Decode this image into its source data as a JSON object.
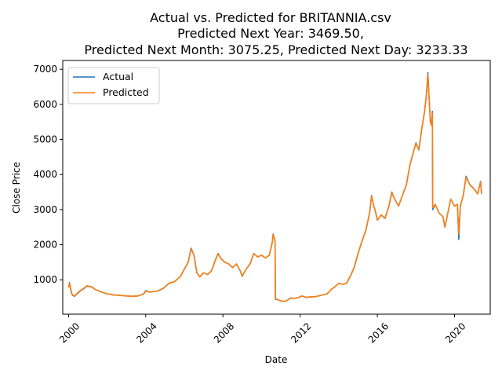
{
  "chart_data": {
    "type": "line",
    "title": [
      "Actual vs. Predicted for BRITANNIA.csv",
      "Predicted Next Year: 3469.50,",
      "Predicted Next Month: 3075.25, Predicted Next Day: 3233.33"
    ],
    "xlabel": "Date",
    "ylabel": "Close Price",
    "xlim": [
      1999.7,
      2021.85
    ],
    "ylim": [
      20,
      7250
    ],
    "xticks": [
      {
        "value": 2000,
        "label": "2000"
      },
      {
        "value": 2004,
        "label": "2004"
      },
      {
        "value": 2008,
        "label": "2008"
      },
      {
        "value": 2012,
        "label": "2012"
      },
      {
        "value": 2016,
        "label": "2016"
      },
      {
        "value": 2020,
        "label": "2020"
      }
    ],
    "yticks": [
      {
        "value": 1000,
        "label": "1000"
      },
      {
        "value": 2000,
        "label": "2000"
      },
      {
        "value": 3000,
        "label": "3000"
      },
      {
        "value": 4000,
        "label": "4000"
      },
      {
        "value": 5000,
        "label": "5000"
      },
      {
        "value": 6000,
        "label": "6000"
      },
      {
        "value": 7000,
        "label": "7000"
      }
    ],
    "legend": "top-left",
    "grid": false,
    "series": [
      {
        "name": "Actual",
        "color": "#1f77b4",
        "points": [
          [
            2000.0,
            780
          ],
          [
            2000.05,
            920
          ],
          [
            2000.12,
            700
          ],
          [
            2000.2,
            560
          ],
          [
            2000.3,
            530
          ],
          [
            2000.45,
            600
          ],
          [
            2000.6,
            680
          ],
          [
            2000.8,
            750
          ],
          [
            2000.95,
            820
          ],
          [
            2001.2,
            800
          ],
          [
            2001.4,
            720
          ],
          [
            2001.7,
            650
          ],
          [
            2002.0,
            600
          ],
          [
            2002.3,
            570
          ],
          [
            2002.6,
            560
          ],
          [
            2003.0,
            540
          ],
          [
            2003.3,
            530
          ],
          [
            2003.6,
            540
          ],
          [
            2003.9,
            600
          ],
          [
            2004.0,
            690
          ],
          [
            2004.2,
            650
          ],
          [
            2004.6,
            680
          ],
          [
            2004.9,
            750
          ],
          [
            2005.2,
            900
          ],
          [
            2005.5,
            950
          ],
          [
            2005.8,
            1100
          ],
          [
            2006.0,
            1300
          ],
          [
            2006.2,
            1500
          ],
          [
            2006.35,
            1900
          ],
          [
            2006.5,
            1700
          ],
          [
            2006.65,
            1200
          ],
          [
            2006.8,
            1080
          ],
          [
            2007.0,
            1200
          ],
          [
            2007.2,
            1150
          ],
          [
            2007.4,
            1250
          ],
          [
            2007.6,
            1550
          ],
          [
            2007.75,
            1750
          ],
          [
            2007.9,
            1600
          ],
          [
            2008.1,
            1500
          ],
          [
            2008.3,
            1450
          ],
          [
            2008.5,
            1350
          ],
          [
            2008.7,
            1450
          ],
          [
            2008.9,
            1250
          ],
          [
            2009.0,
            1100
          ],
          [
            2009.2,
            1300
          ],
          [
            2009.4,
            1450
          ],
          [
            2009.6,
            1750
          ],
          [
            2009.8,
            1650
          ],
          [
            2010.0,
            1700
          ],
          [
            2010.2,
            1620
          ],
          [
            2010.4,
            1700
          ],
          [
            2010.55,
            2050
          ],
          [
            2010.6,
            2300
          ],
          [
            2010.7,
            2100
          ],
          [
            2010.72,
            450
          ],
          [
            2010.9,
            420
          ],
          [
            2011.1,
            380
          ],
          [
            2011.3,
            400
          ],
          [
            2011.5,
            480
          ],
          [
            2011.7,
            470
          ],
          [
            2011.9,
            490
          ],
          [
            2012.1,
            540
          ],
          [
            2012.3,
            500
          ],
          [
            2012.5,
            510
          ],
          [
            2012.8,
            520
          ],
          [
            2013.1,
            560
          ],
          [
            2013.4,
            600
          ],
          [
            2013.6,
            720
          ],
          [
            2013.8,
            800
          ],
          [
            2014.0,
            900
          ],
          [
            2014.2,
            870
          ],
          [
            2014.4,
            900
          ],
          [
            2014.6,
            1100
          ],
          [
            2014.8,
            1350
          ],
          [
            2015.0,
            1750
          ],
          [
            2015.2,
            2100
          ],
          [
            2015.4,
            2400
          ],
          [
            2015.6,
            2900
          ],
          [
            2015.7,
            3400
          ],
          [
            2015.8,
            3150
          ],
          [
            2015.9,
            2950
          ],
          [
            2016.0,
            2700
          ],
          [
            2016.2,
            2850
          ],
          [
            2016.4,
            2750
          ],
          [
            2016.6,
            3100
          ],
          [
            2016.75,
            3500
          ],
          [
            2016.9,
            3300
          ],
          [
            2017.1,
            3100
          ],
          [
            2017.3,
            3400
          ],
          [
            2017.5,
            3700
          ],
          [
            2017.7,
            4300
          ],
          [
            2017.9,
            4700
          ],
          [
            2018.0,
            4900
          ],
          [
            2018.15,
            4700
          ],
          [
            2018.3,
            5300
          ],
          [
            2018.45,
            5800
          ],
          [
            2018.55,
            6300
          ],
          [
            2018.62,
            6900
          ],
          [
            2018.68,
            6200
          ],
          [
            2018.75,
            5500
          ],
          [
            2018.8,
            5400
          ],
          [
            2018.85,
            5800
          ],
          [
            2018.87,
            3000
          ],
          [
            2019.0,
            3150
          ],
          [
            2019.2,
            2900
          ],
          [
            2019.4,
            2800
          ],
          [
            2019.5,
            2500
          ],
          [
            2019.65,
            2900
          ],
          [
            2019.8,
            3300
          ],
          [
            2020.0,
            3100
          ],
          [
            2020.15,
            3150
          ],
          [
            2020.22,
            2150
          ],
          [
            2020.3,
            3100
          ],
          [
            2020.45,
            3400
          ],
          [
            2020.6,
            3950
          ],
          [
            2020.8,
            3700
          ],
          [
            2021.0,
            3600
          ],
          [
            2021.2,
            3450
          ],
          [
            2021.35,
            3800
          ],
          [
            2021.4,
            3450
          ]
        ]
      },
      {
        "name": "Predicted",
        "color": "#ff7f0e",
        "points": [
          [
            2000.0,
            780
          ],
          [
            2000.05,
            900
          ],
          [
            2000.12,
            710
          ],
          [
            2000.2,
            570
          ],
          [
            2000.3,
            540
          ],
          [
            2000.45,
            610
          ],
          [
            2000.6,
            690
          ],
          [
            2000.8,
            760
          ],
          [
            2000.95,
            830
          ],
          [
            2001.2,
            800
          ],
          [
            2001.4,
            720
          ],
          [
            2001.7,
            650
          ],
          [
            2002.0,
            600
          ],
          [
            2002.3,
            570
          ],
          [
            2002.6,
            560
          ],
          [
            2003.0,
            540
          ],
          [
            2003.3,
            530
          ],
          [
            2003.6,
            540
          ],
          [
            2003.9,
            600
          ],
          [
            2004.0,
            680
          ],
          [
            2004.2,
            650
          ],
          [
            2004.6,
            680
          ],
          [
            2004.9,
            750
          ],
          [
            2005.2,
            900
          ],
          [
            2005.5,
            950
          ],
          [
            2005.8,
            1100
          ],
          [
            2006.0,
            1300
          ],
          [
            2006.2,
            1500
          ],
          [
            2006.35,
            1880
          ],
          [
            2006.5,
            1700
          ],
          [
            2006.65,
            1200
          ],
          [
            2006.8,
            1080
          ],
          [
            2007.0,
            1200
          ],
          [
            2007.2,
            1150
          ],
          [
            2007.4,
            1250
          ],
          [
            2007.6,
            1550
          ],
          [
            2007.75,
            1740
          ],
          [
            2007.9,
            1600
          ],
          [
            2008.1,
            1500
          ],
          [
            2008.3,
            1450
          ],
          [
            2008.5,
            1350
          ],
          [
            2008.7,
            1450
          ],
          [
            2008.9,
            1250
          ],
          [
            2009.0,
            1110
          ],
          [
            2009.2,
            1300
          ],
          [
            2009.4,
            1450
          ],
          [
            2009.6,
            1750
          ],
          [
            2009.8,
            1650
          ],
          [
            2010.0,
            1700
          ],
          [
            2010.2,
            1620
          ],
          [
            2010.4,
            1700
          ],
          [
            2010.55,
            2050
          ],
          [
            2010.6,
            2280
          ],
          [
            2010.7,
            2100
          ],
          [
            2010.72,
            460
          ],
          [
            2010.9,
            420
          ],
          [
            2011.1,
            385
          ],
          [
            2011.3,
            400
          ],
          [
            2011.5,
            480
          ],
          [
            2011.7,
            470
          ],
          [
            2011.9,
            490
          ],
          [
            2012.1,
            540
          ],
          [
            2012.3,
            500
          ],
          [
            2012.5,
            510
          ],
          [
            2012.8,
            520
          ],
          [
            2013.1,
            560
          ],
          [
            2013.4,
            600
          ],
          [
            2013.6,
            720
          ],
          [
            2013.8,
            800
          ],
          [
            2014.0,
            900
          ],
          [
            2014.2,
            870
          ],
          [
            2014.4,
            900
          ],
          [
            2014.6,
            1100
          ],
          [
            2014.8,
            1350
          ],
          [
            2015.0,
            1750
          ],
          [
            2015.2,
            2100
          ],
          [
            2015.4,
            2400
          ],
          [
            2015.6,
            2900
          ],
          [
            2015.7,
            3380
          ],
          [
            2015.8,
            3150
          ],
          [
            2015.9,
            2950
          ],
          [
            2016.0,
            2700
          ],
          [
            2016.2,
            2850
          ],
          [
            2016.4,
            2750
          ],
          [
            2016.6,
            3100
          ],
          [
            2016.75,
            3480
          ],
          [
            2016.9,
            3300
          ],
          [
            2017.1,
            3100
          ],
          [
            2017.3,
            3400
          ],
          [
            2017.5,
            3700
          ],
          [
            2017.7,
            4300
          ],
          [
            2017.9,
            4700
          ],
          [
            2018.0,
            4880
          ],
          [
            2018.15,
            4700
          ],
          [
            2018.3,
            5300
          ],
          [
            2018.45,
            5800
          ],
          [
            2018.55,
            6300
          ],
          [
            2018.62,
            6850
          ],
          [
            2018.68,
            6200
          ],
          [
            2018.75,
            5500
          ],
          [
            2018.8,
            5400
          ],
          [
            2018.85,
            5750
          ],
          [
            2018.87,
            3050
          ],
          [
            2019.0,
            3150
          ],
          [
            2019.2,
            2900
          ],
          [
            2019.4,
            2800
          ],
          [
            2019.5,
            2500
          ],
          [
            2019.65,
            2900
          ],
          [
            2019.8,
            3300
          ],
          [
            2020.0,
            3100
          ],
          [
            2020.15,
            3150
          ],
          [
            2020.22,
            2300
          ],
          [
            2020.3,
            3100
          ],
          [
            2020.45,
            3400
          ],
          [
            2020.6,
            3920
          ],
          [
            2020.8,
            3700
          ],
          [
            2021.0,
            3600
          ],
          [
            2021.2,
            3450
          ],
          [
            2021.35,
            3780
          ],
          [
            2021.4,
            3460
          ]
        ]
      }
    ]
  }
}
